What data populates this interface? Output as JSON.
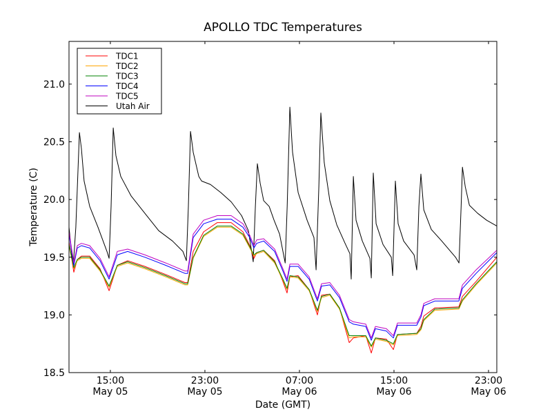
{
  "chart_data": {
    "type": "line",
    "title": "APOLLO TDC Temperatures",
    "xlabel": "Date (GMT)",
    "ylabel": "Temperature (C)",
    "x_units": "hours since 00:00 May 05 (GMT)",
    "xlim": [
      11.5,
      47.7
    ],
    "ylim": [
      18.5,
      21.37
    ],
    "grid": false,
    "legend_position": "top-left",
    "yticks": [
      {
        "value": 18.5,
        "label": "18.5"
      },
      {
        "value": 19.0,
        "label": "19.0"
      },
      {
        "value": 19.5,
        "label": "19.5"
      },
      {
        "value": 20.0,
        "label": "20.0"
      },
      {
        "value": 20.5,
        "label": "20.5"
      },
      {
        "value": 21.0,
        "label": "21.0"
      }
    ],
    "xticks": [
      {
        "value": 15,
        "label_time": "15:00",
        "label_date": "May 05"
      },
      {
        "value": 23,
        "label_time": "23:00",
        "label_date": "May 05"
      },
      {
        "value": 31,
        "label_time": "07:00",
        "label_date": "May 06"
      },
      {
        "value": 39,
        "label_time": "15:00",
        "label_date": "May 06"
      },
      {
        "value": 47,
        "label_time": "23:00",
        "label_date": "May 06"
      }
    ],
    "series": [
      {
        "name": "TDC1",
        "color": "#ff0000",
        "x": [
          11.5,
          11.91,
          12.2,
          12.55,
          13.25,
          14.13,
          14.89,
          15.59,
          16.46,
          17.92,
          19.68,
          21.31,
          21.54,
          22.01,
          22.89,
          24.05,
          25.22,
          26.22,
          26.8,
          27.15,
          27.38,
          27.97,
          28.9,
          29.6,
          29.95,
          30.19,
          30.89,
          31.82,
          32.52,
          32.87,
          33.57,
          34.39,
          35.21,
          35.56,
          36.61,
          37.08,
          37.43,
          38.36,
          38.95,
          39.3,
          40.93,
          41.28,
          41.52,
          42.45,
          44.49,
          44.79,
          45.95,
          47.7
        ],
        "y": [
          19.63,
          19.37,
          19.48,
          19.51,
          19.51,
          19.4,
          19.21,
          19.43,
          19.47,
          19.42,
          19.35,
          19.28,
          19.28,
          19.55,
          19.72,
          19.8,
          19.8,
          19.72,
          19.6,
          19.49,
          19.54,
          19.56,
          19.47,
          19.29,
          19.19,
          19.33,
          19.34,
          19.22,
          19.0,
          19.17,
          19.18,
          19.06,
          18.76,
          18.8,
          18.82,
          18.67,
          18.8,
          18.79,
          18.7,
          18.83,
          18.84,
          18.9,
          18.99,
          19.06,
          19.07,
          19.16,
          19.29,
          19.5
        ]
      },
      {
        "name": "TDC2",
        "color": "#ffa500",
        "x": [
          11.5,
          11.91,
          12.2,
          12.55,
          13.25,
          14.13,
          14.89,
          15.59,
          16.46,
          17.92,
          19.68,
          21.31,
          21.54,
          22.01,
          22.89,
          24.05,
          25.22,
          26.22,
          26.8,
          27.15,
          27.38,
          27.97,
          28.9,
          29.6,
          29.95,
          30.19,
          30.89,
          31.82,
          32.52,
          32.87,
          33.57,
          34.39,
          35.21,
          35.56,
          36.61,
          37.08,
          37.43,
          38.36,
          38.95,
          39.3,
          40.93,
          41.28,
          41.52,
          42.45,
          44.49,
          44.79,
          45.95,
          47.7
        ],
        "y": [
          19.6,
          19.4,
          19.47,
          19.49,
          19.49,
          19.38,
          19.24,
          19.42,
          19.45,
          19.4,
          19.33,
          19.26,
          19.26,
          19.49,
          19.68,
          19.76,
          19.76,
          19.69,
          19.58,
          19.51,
          19.53,
          19.55,
          19.45,
          19.3,
          19.22,
          19.33,
          19.32,
          19.21,
          19.03,
          19.15,
          19.17,
          19.05,
          18.8,
          18.81,
          18.81,
          18.72,
          18.79,
          18.77,
          18.74,
          18.82,
          18.83,
          18.87,
          18.95,
          19.04,
          19.05,
          19.12,
          19.26,
          19.45
        ]
      },
      {
        "name": "TDC3",
        "color": "#008000",
        "x": [
          11.5,
          11.91,
          12.2,
          12.55,
          13.25,
          14.13,
          14.89,
          15.59,
          16.46,
          17.92,
          19.68,
          21.31,
          21.54,
          22.01,
          22.89,
          24.05,
          25.22,
          26.22,
          26.8,
          27.15,
          27.38,
          27.97,
          28.9,
          29.6,
          29.95,
          30.19,
          30.89,
          31.82,
          32.52,
          32.87,
          33.57,
          34.39,
          35.21,
          35.56,
          36.61,
          37.08,
          37.43,
          38.36,
          38.95,
          39.3,
          40.93,
          41.28,
          41.52,
          42.45,
          44.49,
          44.79,
          45.95,
          47.7
        ],
        "y": [
          19.61,
          19.41,
          19.48,
          19.5,
          19.5,
          19.39,
          19.25,
          19.43,
          19.46,
          19.41,
          19.34,
          19.27,
          19.27,
          19.5,
          19.69,
          19.77,
          19.77,
          19.7,
          19.59,
          19.52,
          19.54,
          19.56,
          19.46,
          19.31,
          19.23,
          19.34,
          19.33,
          19.22,
          19.04,
          19.16,
          19.18,
          19.06,
          18.82,
          18.82,
          18.82,
          18.73,
          18.8,
          18.78,
          18.75,
          18.83,
          18.84,
          18.88,
          18.96,
          19.05,
          19.06,
          19.13,
          19.27,
          19.46
        ]
      },
      {
        "name": "TDC4",
        "color": "#0000ff",
        "x": [
          11.5,
          11.91,
          12.2,
          12.55,
          13.25,
          14.13,
          14.89,
          15.59,
          16.46,
          17.92,
          19.68,
          21.31,
          21.54,
          22.01,
          22.89,
          24.05,
          25.22,
          26.22,
          26.8,
          27.15,
          27.38,
          27.97,
          28.9,
          29.6,
          29.95,
          30.19,
          30.89,
          31.82,
          32.52,
          32.87,
          33.57,
          34.39,
          35.21,
          35.56,
          36.61,
          37.08,
          37.43,
          38.36,
          38.95,
          39.3,
          40.93,
          41.28,
          41.52,
          42.45,
          44.49,
          44.79,
          45.95,
          47.7
        ],
        "y": [
          19.7,
          19.43,
          19.58,
          19.6,
          19.58,
          19.47,
          19.31,
          19.52,
          19.55,
          19.5,
          19.43,
          19.36,
          19.36,
          19.67,
          19.79,
          19.83,
          19.83,
          19.76,
          19.67,
          19.58,
          19.62,
          19.64,
          19.55,
          19.38,
          19.29,
          19.42,
          19.42,
          19.31,
          19.12,
          19.25,
          19.26,
          19.15,
          18.94,
          18.92,
          18.9,
          18.78,
          18.88,
          18.86,
          18.8,
          18.91,
          18.91,
          18.98,
          19.08,
          19.12,
          19.12,
          19.23,
          19.36,
          19.54
        ]
      },
      {
        "name": "TDC5",
        "color": "#bf00bf",
        "x": [
          11.5,
          11.91,
          12.2,
          12.55,
          13.25,
          14.13,
          14.89,
          15.59,
          16.46,
          17.92,
          19.68,
          21.31,
          21.54,
          22.01,
          22.89,
          24.05,
          25.22,
          26.22,
          26.8,
          27.15,
          27.38,
          27.97,
          28.9,
          29.6,
          29.95,
          30.19,
          30.89,
          31.82,
          32.52,
          32.87,
          33.57,
          34.39,
          35.21,
          35.56,
          36.61,
          37.08,
          37.43,
          38.36,
          38.95,
          39.3,
          40.93,
          41.28,
          41.52,
          42.45,
          44.49,
          44.79,
          45.95,
          47.7
        ],
        "y": [
          19.72,
          19.45,
          19.6,
          19.62,
          19.6,
          19.49,
          19.33,
          19.55,
          19.57,
          19.52,
          19.45,
          19.38,
          19.38,
          19.7,
          19.82,
          19.86,
          19.86,
          19.79,
          19.69,
          19.6,
          19.65,
          19.66,
          19.57,
          19.4,
          19.31,
          19.44,
          19.44,
          19.33,
          19.14,
          19.27,
          19.28,
          19.17,
          18.96,
          18.94,
          18.92,
          18.8,
          18.9,
          18.88,
          18.82,
          18.93,
          18.93,
          19.0,
          19.1,
          19.14,
          19.14,
          19.26,
          19.39,
          19.56
        ]
      },
      {
        "name": "Utah Air",
        "color": "#000000",
        "x": [
          11.5,
          11.85,
          12.08,
          12.38,
          12.55,
          12.78,
          13.25,
          13.95,
          14.71,
          14.89,
          15.06,
          15.24,
          15.47,
          15.88,
          16.76,
          17.92,
          19.09,
          20.26,
          21.14,
          21.43,
          21.6,
          21.78,
          22.01,
          22.48,
          22.72,
          23.47,
          24.35,
          25.22,
          26.1,
          26.68,
          27.09,
          27.27,
          27.44,
          27.68,
          27.97,
          28.44,
          28.85,
          29.32,
          29.79,
          29.96,
          30.19,
          30.42,
          30.89,
          31.65,
          32.23,
          32.41,
          32.64,
          32.81,
          33.1,
          33.57,
          34.16,
          34.86,
          35.27,
          35.38,
          35.56,
          35.79,
          36.32,
          36.96,
          37.08,
          37.25,
          37.49,
          38.07,
          38.77,
          38.89,
          39.12,
          39.35,
          39.82,
          40.7,
          40.93,
          41.11,
          41.28,
          41.52,
          42.16,
          43.04,
          44.21,
          44.5,
          44.68,
          44.79,
          45.03,
          45.38,
          46.08,
          46.84,
          47.7
        ],
        "y": [
          19.76,
          19.41,
          19.76,
          20.58,
          20.44,
          20.16,
          19.94,
          19.76,
          19.55,
          19.49,
          19.94,
          20.62,
          20.38,
          20.2,
          20.03,
          19.88,
          19.73,
          19.64,
          19.55,
          19.47,
          19.94,
          20.59,
          20.41,
          20.2,
          20.16,
          20.13,
          20.06,
          19.98,
          19.86,
          19.73,
          19.46,
          19.94,
          20.31,
          20.14,
          19.99,
          19.94,
          19.82,
          19.7,
          19.45,
          19.94,
          20.8,
          20.41,
          20.06,
          19.82,
          19.67,
          19.39,
          20.11,
          20.75,
          20.32,
          19.99,
          19.78,
          19.62,
          19.53,
          19.31,
          20.2,
          19.82,
          19.64,
          19.49,
          19.32,
          20.23,
          19.79,
          19.61,
          19.5,
          19.34,
          20.16,
          19.79,
          19.64,
          19.52,
          19.39,
          19.94,
          20.22,
          19.91,
          19.74,
          19.64,
          19.5,
          19.45,
          19.94,
          20.28,
          20.11,
          19.95,
          19.88,
          19.82,
          19.77
        ]
      }
    ]
  }
}
